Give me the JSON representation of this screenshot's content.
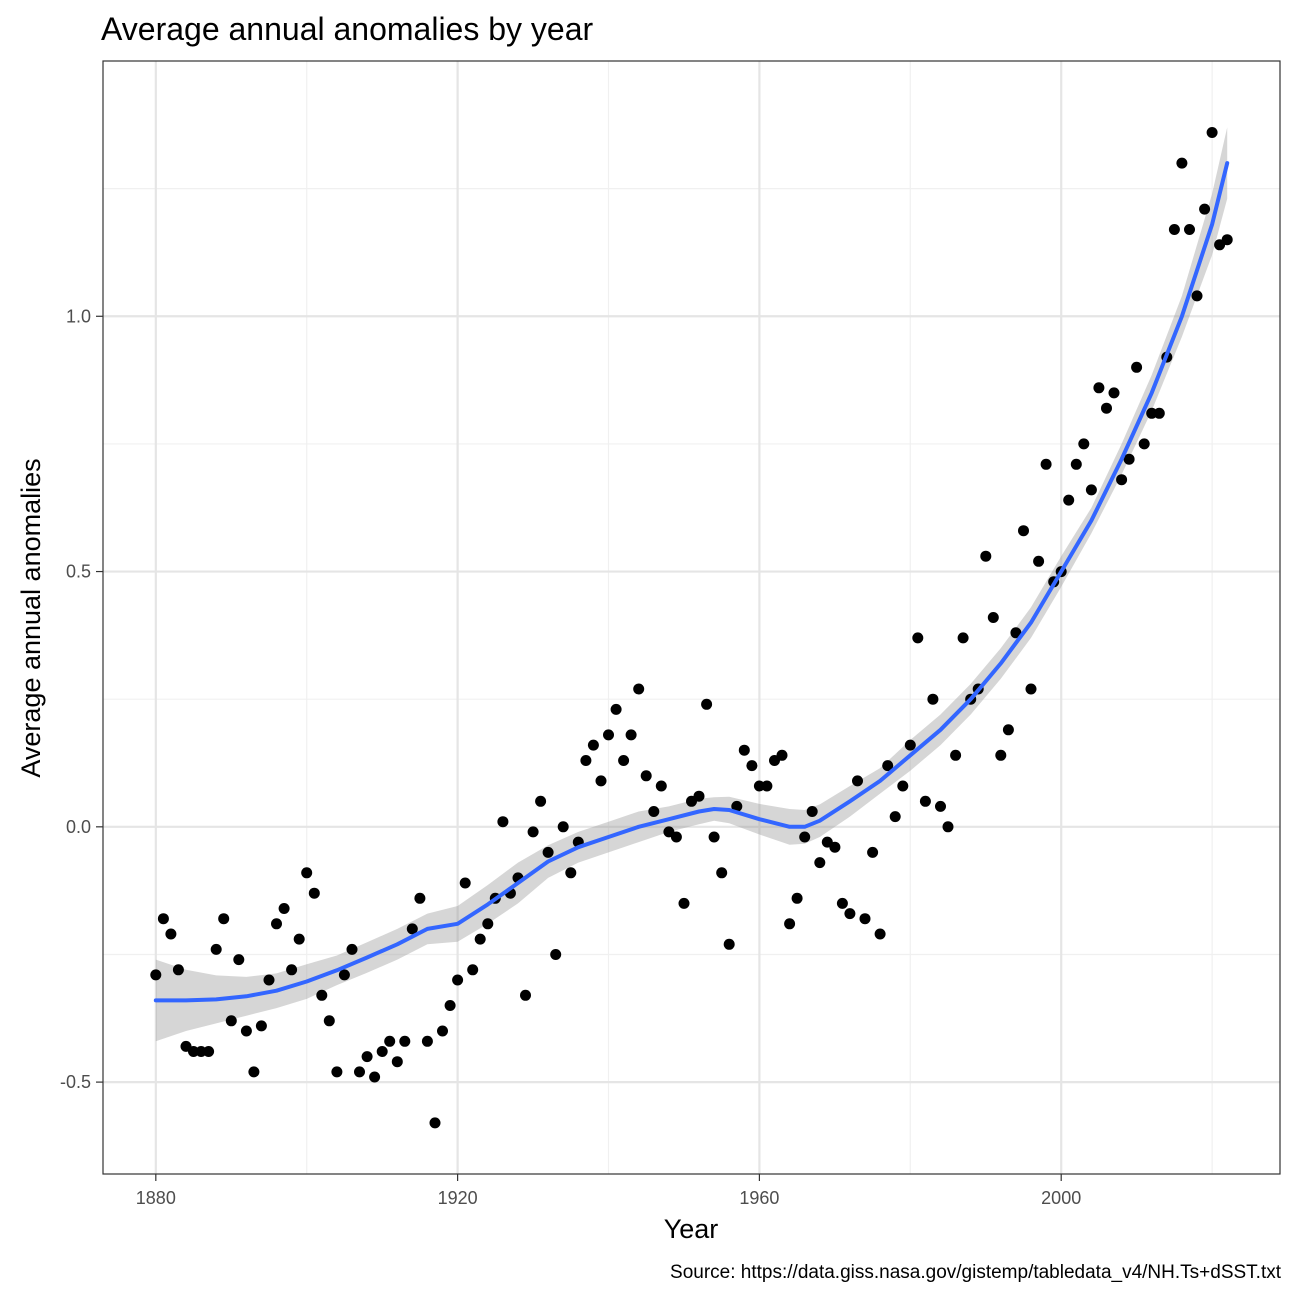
{
  "chart_data": {
    "type": "scatter",
    "title": "Average annual anomalies by year",
    "xlabel": "Year",
    "ylabel": "Average annual anomalies",
    "caption": "Source: https://data.giss.nasa.gov/gistemp/tabledata_v4/NH.Ts+dSST.txt",
    "xlim": [
      1873,
      2029
    ],
    "ylim": [
      -0.68,
      1.5
    ],
    "x_ticks": [
      1880,
      1920,
      1960,
      2000
    ],
    "x_tick_labels": [
      "1880",
      "1920",
      "1960",
      "2000"
    ],
    "y_ticks": [
      -0.5,
      0.0,
      0.5,
      1.0
    ],
    "y_tick_labels": [
      "-0.5",
      "0.0",
      "0.5",
      "1.0"
    ],
    "grid": true,
    "theme": "bw",
    "colors": {
      "points": "#000000",
      "smooth_line": "#3366ff",
      "ribbon": "#999999"
    },
    "series": [
      {
        "x": [
          1880,
          1881,
          1882,
          1883,
          1884,
          1885,
          1886,
          1887,
          1888,
          1889,
          1890,
          1891,
          1892,
          1893,
          1894,
          1895,
          1896,
          1897,
          1898,
          1899,
          1900,
          1901,
          1902,
          1903,
          1904,
          1905,
          1906,
          1907,
          1908,
          1909,
          1910,
          1911,
          1912,
          1913,
          1914,
          1915,
          1916,
          1917,
          1918,
          1919,
          1920,
          1921,
          1922,
          1923,
          1924,
          1925,
          1926,
          1927,
          1928,
          1929,
          1930,
          1931,
          1932,
          1933,
          1934,
          1935,
          1936,
          1937,
          1938,
          1939,
          1940,
          1941,
          1942,
          1943,
          1944,
          1945,
          1946,
          1947,
          1948,
          1949,
          1950,
          1951,
          1952,
          1953,
          1954,
          1955,
          1956,
          1957,
          1958,
          1959,
          1960,
          1961,
          1962,
          1963,
          1964,
          1965,
          1966,
          1967,
          1968,
          1969,
          1970,
          1971,
          1972,
          1973,
          1974,
          1975,
          1976,
          1977,
          1978,
          1979,
          1980,
          1981,
          1982,
          1983,
          1984,
          1985,
          1986,
          1987,
          1988,
          1989,
          1990,
          1991,
          1992,
          1993,
          1994,
          1995,
          1996,
          1997,
          1998,
          1999,
          2000,
          2001,
          2002,
          2003,
          2004,
          2005,
          2006,
          2007,
          2008,
          2009,
          2010,
          2011,
          2012,
          2013,
          2014,
          2015,
          2016,
          2017,
          2018,
          2019,
          2020,
          2021,
          2022
        ],
        "y": [
          -0.29,
          -0.18,
          -0.21,
          -0.28,
          -0.43,
          -0.44,
          -0.44,
          -0.44,
          -0.24,
          -0.18,
          -0.38,
          -0.26,
          -0.4,
          -0.48,
          -0.39,
          -0.3,
          -0.19,
          -0.16,
          -0.28,
          -0.22,
          -0.09,
          -0.13,
          -0.33,
          -0.38,
          -0.48,
          -0.29,
          -0.24,
          -0.48,
          -0.45,
          -0.49,
          -0.44,
          -0.42,
          -0.46,
          -0.42,
          -0.2,
          -0.14,
          -0.42,
          -0.58,
          -0.4,
          -0.35,
          -0.3,
          -0.11,
          -0.28,
          -0.22,
          -0.19,
          -0.14,
          0.01,
          -0.13,
          -0.1,
          -0.33,
          -0.01,
          0.05,
          -0.05,
          -0.25,
          0.0,
          -0.09,
          -0.03,
          0.13,
          0.16,
          0.09,
          0.18,
          0.23,
          0.13,
          0.18,
          0.27,
          0.1,
          0.03,
          0.08,
          -0.01,
          -0.02,
          -0.15,
          0.05,
          0.06,
          0.24,
          -0.02,
          -0.09,
          -0.23,
          0.04,
          0.15,
          0.12,
          0.08,
          0.08,
          0.13,
          0.14,
          -0.19,
          -0.14,
          -0.02,
          0.03,
          -0.07,
          -0.03,
          -0.04,
          -0.15,
          -0.17,
          0.09,
          -0.18,
          -0.05,
          -0.21,
          0.12,
          0.02,
          0.08,
          0.16,
          0.37,
          0.05,
          0.25,
          0.04,
          0.0,
          0.14,
          0.37,
          0.25,
          0.27,
          0.53,
          0.41,
          0.14,
          0.19,
          0.38,
          0.58,
          0.27,
          0.52,
          0.71,
          0.48,
          0.5,
          0.64,
          0.71,
          0.75,
          0.66,
          0.86,
          0.82,
          0.85,
          0.68,
          0.72,
          0.9,
          0.75,
          0.81,
          0.81,
          0.92,
          1.17,
          1.3,
          1.17,
          1.04,
          1.21,
          1.36,
          1.14,
          1.15
        ]
      },
      {
        "name": "smooth",
        "x": [
          1880,
          1884,
          1888,
          1892,
          1896,
          1900,
          1904,
          1908,
          1912,
          1916,
          1920,
          1924,
          1928,
          1932,
          1936,
          1940,
          1944,
          1948,
          1952,
          1954,
          1956,
          1960,
          1964,
          1966,
          1968,
          1972,
          1976,
          1980,
          1984,
          1988,
          1992,
          1996,
          2000,
          2004,
          2008,
          2012,
          2016,
          2020,
          2022
        ],
        "y": [
          -0.34,
          -0.34,
          -0.338,
          -0.332,
          -0.321,
          -0.303,
          -0.281,
          -0.256,
          -0.23,
          -0.2,
          -0.19,
          -0.152,
          -0.11,
          -0.068,
          -0.04,
          -0.02,
          0.0,
          0.015,
          0.03,
          0.035,
          0.033,
          0.015,
          0.0,
          0.0,
          0.012,
          0.05,
          0.09,
          0.14,
          0.19,
          0.25,
          0.32,
          0.4,
          0.5,
          0.6,
          0.72,
          0.85,
          1.0,
          1.18,
          1.3
        ]
      }
    ],
    "ribbon": {
      "x": [
        1880,
        1884,
        1888,
        1892,
        1896,
        1900,
        1904,
        1908,
        1912,
        1916,
        1920,
        1924,
        1928,
        1932,
        1936,
        1940,
        1944,
        1948,
        1952,
        1954,
        1956,
        1960,
        1964,
        1966,
        1968,
        1972,
        1976,
        1980,
        1984,
        1988,
        1992,
        1996,
        2000,
        2004,
        2008,
        2012,
        2016,
        2020,
        2022
      ],
      "lower": [
        -0.42,
        -0.4,
        -0.385,
        -0.37,
        -0.355,
        -0.337,
        -0.31,
        -0.286,
        -0.26,
        -0.23,
        -0.225,
        -0.19,
        -0.15,
        -0.1,
        -0.07,
        -0.05,
        -0.03,
        -0.01,
        0.005,
        0.012,
        0.007,
        -0.015,
        -0.035,
        -0.033,
        -0.02,
        0.02,
        0.065,
        0.11,
        0.16,
        0.22,
        0.29,
        0.37,
        0.47,
        0.575,
        0.69,
        0.815,
        0.96,
        1.12,
        1.23
      ],
      "upper": [
        -0.26,
        -0.28,
        -0.291,
        -0.294,
        -0.287,
        -0.269,
        -0.252,
        -0.226,
        -0.2,
        -0.17,
        -0.155,
        -0.114,
        -0.07,
        -0.036,
        -0.01,
        0.01,
        0.03,
        0.04,
        0.055,
        0.058,
        0.059,
        0.045,
        0.035,
        0.033,
        0.044,
        0.08,
        0.115,
        0.17,
        0.22,
        0.28,
        0.35,
        0.43,
        0.53,
        0.625,
        0.75,
        0.885,
        1.04,
        1.24,
        1.37
      ]
    }
  }
}
